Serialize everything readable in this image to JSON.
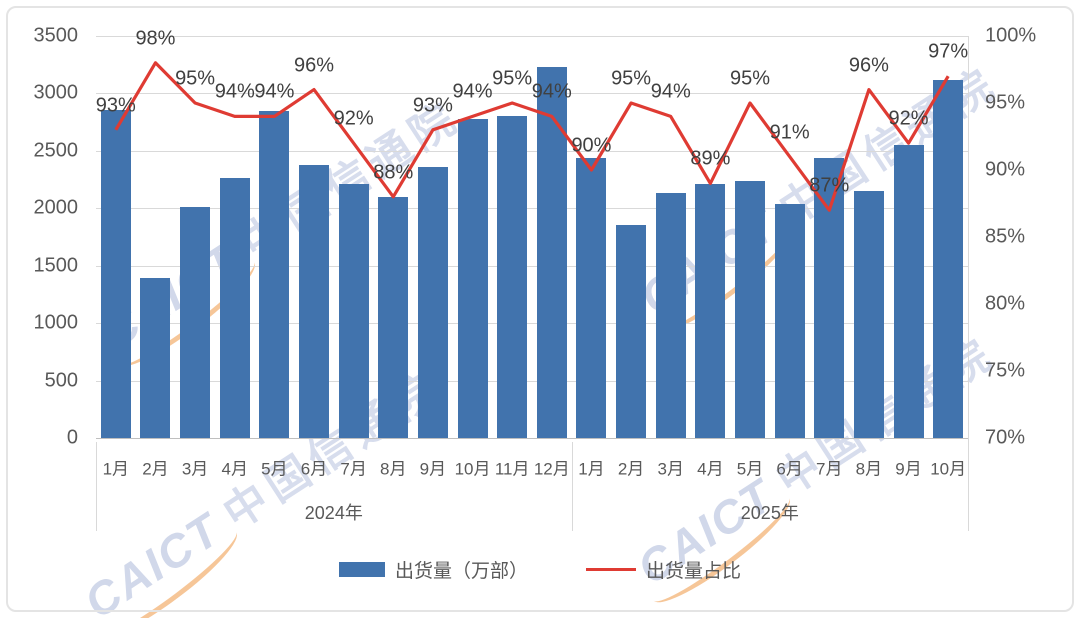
{
  "watermark": {
    "latin": "CAICT",
    "cjk": "中国信通院"
  },
  "legend": {
    "items": [
      {
        "label": "出货量（万部）",
        "type": "bar"
      },
      {
        "label": "出货量占比",
        "type": "line"
      }
    ]
  },
  "colors": {
    "bar": "#4173AD",
    "line": "#DF3B33",
    "gridline": "#D9D9D9",
    "axis_text": "#595959",
    "data_label_text": "#404040"
  },
  "chart_data": {
    "type": "bar+line",
    "title": "",
    "categories": [
      "1月",
      "2月",
      "3月",
      "4月",
      "5月",
      "6月",
      "7月",
      "8月",
      "9月",
      "10月",
      "11月",
      "12月",
      "1月",
      "2月",
      "3月",
      "4月",
      "5月",
      "6月",
      "7月",
      "8月",
      "9月",
      "10月"
    ],
    "category_groups": [
      {
        "label": "2024年",
        "count": 12
      },
      {
        "label": "2025年",
        "count": 10
      }
    ],
    "series": [
      {
        "name": "出货量（万部）",
        "type": "bar",
        "axis": "left",
        "color": "#4173AD",
        "values": [
          2860,
          1395,
          2015,
          2260,
          2850,
          2380,
          2210,
          2100,
          2360,
          2780,
          2805,
          3230,
          2440,
          1855,
          2130,
          2215,
          2235,
          2040,
          2440,
          2150,
          2555,
          3115
        ]
      },
      {
        "name": "出货量占比",
        "type": "line",
        "axis": "right",
        "color": "#DF3B33",
        "unit": "%",
        "values": [
          93,
          98,
          95,
          94,
          94,
          96,
          92,
          88,
          93,
          94,
          95,
          94,
          90,
          95,
          94,
          89,
          95,
          91,
          87,
          96,
          92,
          97
        ],
        "data_labels": [
          "93%",
          "98%",
          "95%",
          "94%",
          "94%",
          "96%",
          "92%",
          "88%",
          "93%",
          "94%",
          "95%",
          "94%",
          "90%",
          "95%",
          "94%",
          "89%",
          "95%",
          "91%",
          "87%",
          "96%",
          "92%",
          "97%"
        ]
      }
    ],
    "left_axis": {
      "min": 0,
      "max": 3500,
      "step": 500,
      "tick_labels": [
        "3500",
        "3000",
        "2500",
        "2000",
        "1500",
        "1000",
        "500",
        "0"
      ]
    },
    "right_axis": {
      "min": 70,
      "max": 100,
      "step": 5,
      "tick_labels": [
        "100%",
        "95%",
        "90%",
        "85%",
        "80%",
        "75%",
        "70%"
      ]
    },
    "grid": true,
    "legend_position": "bottom"
  }
}
